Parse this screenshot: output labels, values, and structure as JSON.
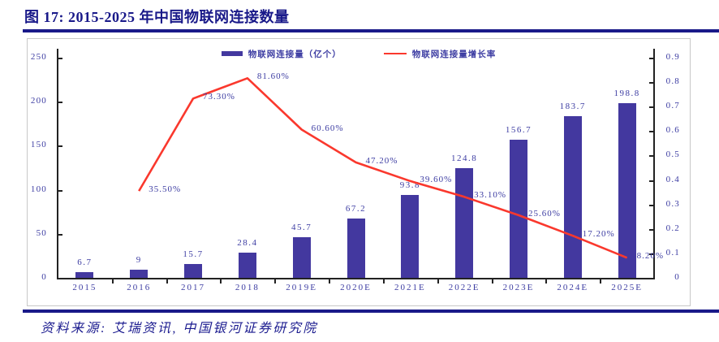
{
  "title": "图 17:  2015-2025 年中国物联网连接数量",
  "source_text": "资料来源: 艾瑞资讯, 中国银河证券研究院",
  "legend": {
    "bar_label": "物联网连接量（亿个）",
    "line_label": "物联网连接量增长率"
  },
  "colors": {
    "navy_rule": "#191989",
    "bar_fill": "#43389f",
    "line_red": "#fa382d",
    "label_text": "#3c3ca2",
    "axis_black": "#222222",
    "box_border": "#c8c8c8"
  },
  "chart_data": {
    "type": "bar",
    "combo": "bar+line dual axis",
    "title": "图 17: 2015-2025 年中国物联网连接数量",
    "categories": [
      "2015",
      "2016",
      "2017",
      "2018",
      "2019E",
      "2020E",
      "2021E",
      "2022E",
      "2023E",
      "2024E",
      "2025E"
    ],
    "series": [
      {
        "name": "物联网连接量（亿个）",
        "type": "bar",
        "axis": "left",
        "values": [
          6.7,
          9,
          15.7,
          28.4,
          45.7,
          67.2,
          93.8,
          124.8,
          156.7,
          183.7,
          198.8
        ],
        "value_labels": [
          "6.7",
          "9",
          "15.7",
          "28.4",
          "45.7",
          "67.2",
          "93.8",
          "124.8",
          "156.7",
          "183.7",
          "198.8"
        ]
      },
      {
        "name": "物联网连接量增长率",
        "type": "line",
        "axis": "right",
        "values": [
          null,
          0.355,
          0.733,
          0.816,
          0.606,
          0.472,
          0.396,
          0.331,
          0.256,
          0.172,
          0.082
        ],
        "value_labels": [
          null,
          "35.50%",
          "73.30%",
          "81.60%",
          "60.60%",
          "47.20%",
          "39.60%",
          "33.10%",
          "25.60%",
          "17.20%",
          "8.20%"
        ]
      }
    ],
    "left_axis": {
      "min": 0,
      "max": 250,
      "tick_values": [
        0,
        50,
        100,
        150,
        200,
        250
      ],
      "tick_labels": [
        "0",
        "50",
        "100",
        "150",
        "200",
        "250"
      ]
    },
    "right_axis": {
      "min": 0,
      "max": 0.9,
      "tick_values": [
        0,
        0.1,
        0.2,
        0.3,
        0.4,
        0.5,
        0.6,
        0.7,
        0.8,
        0.9
      ],
      "tick_labels": [
        "0",
        "0.1",
        "0.2",
        "0.3",
        "0.4",
        "0.5",
        "0.6",
        "0.7",
        "0.8",
        "0.9"
      ]
    },
    "grid": false,
    "legend_position": "top-center"
  }
}
